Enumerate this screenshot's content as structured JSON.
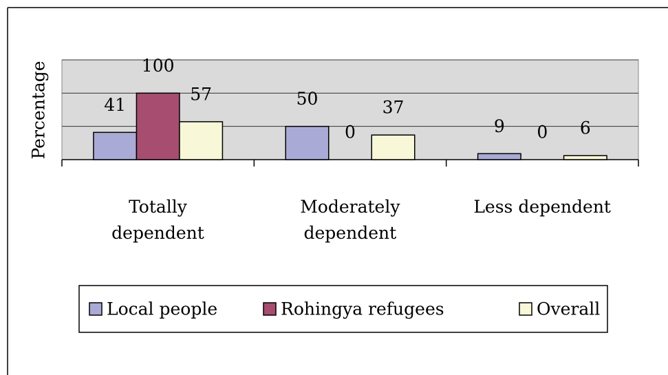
{
  "chart_data": {
    "type": "bar",
    "y_label": "Percentage",
    "categories": [
      "Totally\ndependent",
      "Moderately\ndependent",
      "Less dependent"
    ],
    "series": [
      {
        "name": "Local people",
        "color": "#aaaad6",
        "values": [
          41,
          50,
          9
        ]
      },
      {
        "name": "Rohingya refugees",
        "color": "#a64d70",
        "values": [
          100,
          0,
          0
        ]
      },
      {
        "name": "Overall",
        "color": "#f8f8d8",
        "values": [
          57,
          37,
          6
        ]
      }
    ],
    "ylim": [
      0,
      150
    ],
    "yticks": [
      0,
      50,
      100,
      150
    ],
    "grid": true,
    "legend": "bottom"
  }
}
